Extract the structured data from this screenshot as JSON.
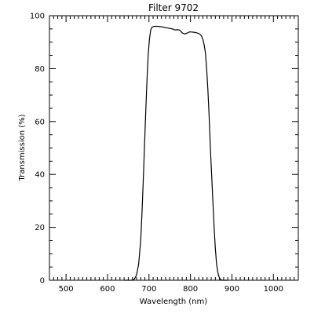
{
  "chart_data": {
    "type": "line",
    "title": "Filter 9702",
    "xlabel": "Wavelength (nm)",
    "ylabel": "Transmission (%)",
    "xlim": [
      460,
      1060
    ],
    "ylim": [
      0,
      100
    ],
    "x_ticks": [
      500,
      600,
      700,
      800,
      900,
      1000
    ],
    "x_tick_labels": [
      "500",
      "600",
      "700",
      "800",
      "900",
      "1000"
    ],
    "x_minor_step": 10,
    "y_ticks": [
      0,
      20,
      40,
      60,
      80,
      100
    ],
    "y_tick_labels": [
      "0",
      "20",
      "40",
      "60",
      "80",
      "100"
    ],
    "y_minor_step": 5,
    "grid": false,
    "series": [
      {
        "color": "#000000",
        "x": [
          640,
          660,
          665,
          670,
          675,
          680,
          683,
          686,
          689,
          692,
          695,
          698,
          701,
          704,
          707,
          712,
          720,
          730,
          740,
          750,
          757,
          762,
          768,
          774,
          780,
          786,
          792,
          798,
          804,
          810,
          816,
          822,
          826,
          830,
          833,
          836,
          839,
          842,
          845,
          848,
          851,
          854,
          857,
          860,
          863,
          866,
          869,
          872,
          876,
          880,
          890
        ],
        "y": [
          0,
          0,
          0.5,
          2,
          6,
          15,
          25,
          37,
          50,
          63,
          75,
          85,
          91,
          94.5,
          95.6,
          96,
          96,
          95.8,
          95.5,
          95.2,
          95,
          94.6,
          94.7,
          94.6,
          93.5,
          93.1,
          93.4,
          93.9,
          93.8,
          93.7,
          93.5,
          93.1,
          92.5,
          91,
          89,
          86,
          80,
          72,
          62,
          50,
          40,
          30,
          20,
          12,
          6,
          3,
          1.2,
          0.4,
          0,
          0,
          0
        ]
      }
    ]
  }
}
